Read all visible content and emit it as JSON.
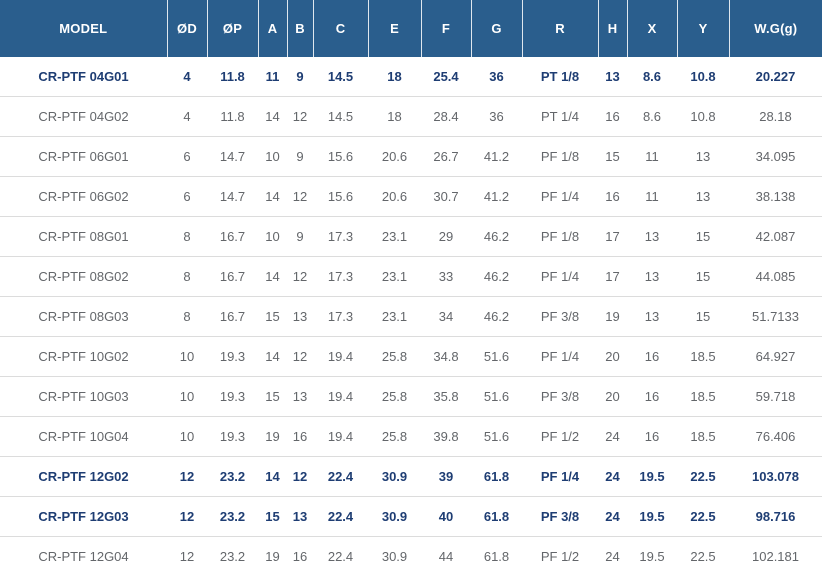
{
  "chart_data": {
    "type": "table",
    "title": "",
    "columns": [
      "MODEL",
      "ØD",
      "ØP",
      "A",
      "B",
      "C",
      "E",
      "F",
      "G",
      "R",
      "H",
      "X",
      "Y",
      "W.G(g)"
    ],
    "rows": [
      [
        "CR-PTF 04G01",
        "4",
        "11.8",
        "11",
        "9",
        "14.5",
        "18",
        "25.4",
        "36",
        "PT 1/8",
        "13",
        "8.6",
        "10.8",
        "20.227"
      ],
      [
        "CR-PTF 04G02",
        "4",
        "11.8",
        "14",
        "12",
        "14.5",
        "18",
        "28.4",
        "36",
        "PT 1/4",
        "16",
        "8.6",
        "10.8",
        "28.18"
      ],
      [
        "CR-PTF 06G01",
        "6",
        "14.7",
        "10",
        "9",
        "15.6",
        "20.6",
        "26.7",
        "41.2",
        "PF 1/8",
        "15",
        "11",
        "13",
        "34.095"
      ],
      [
        "CR-PTF 06G02",
        "6",
        "14.7",
        "14",
        "12",
        "15.6",
        "20.6",
        "30.7",
        "41.2",
        "PF 1/4",
        "16",
        "11",
        "13",
        "38.138"
      ],
      [
        "CR-PTF 08G01",
        "8",
        "16.7",
        "10",
        "9",
        "17.3",
        "23.1",
        "29",
        "46.2",
        "PF 1/8",
        "17",
        "13",
        "15",
        "42.087"
      ],
      [
        "CR-PTF 08G02",
        "8",
        "16.7",
        "14",
        "12",
        "17.3",
        "23.1",
        "33",
        "46.2",
        "PF 1/4",
        "17",
        "13",
        "15",
        "44.085"
      ],
      [
        "CR-PTF 08G03",
        "8",
        "16.7",
        "15",
        "13",
        "17.3",
        "23.1",
        "34",
        "46.2",
        "PF 3/8",
        "19",
        "13",
        "15",
        "51.7133"
      ],
      [
        "CR-PTF 10G02",
        "10",
        "19.3",
        "14",
        "12",
        "19.4",
        "25.8",
        "34.8",
        "51.6",
        "PF 1/4",
        "20",
        "16",
        "18.5",
        "64.927"
      ],
      [
        "CR-PTF 10G03",
        "10",
        "19.3",
        "15",
        "13",
        "19.4",
        "25.8",
        "35.8",
        "51.6",
        "PF 3/8",
        "20",
        "16",
        "18.5",
        "59.718"
      ],
      [
        "CR-PTF 10G04",
        "10",
        "19.3",
        "19",
        "16",
        "19.4",
        "25.8",
        "39.8",
        "51.6",
        "PF 1/2",
        "24",
        "16",
        "18.5",
        "76.406"
      ],
      [
        "CR-PTF 12G02",
        "12",
        "23.2",
        "14",
        "12",
        "22.4",
        "30.9",
        "39",
        "61.8",
        "PF 1/4",
        "24",
        "19.5",
        "22.5",
        "103.078"
      ],
      [
        "CR-PTF 12G03",
        "12",
        "23.2",
        "15",
        "13",
        "22.4",
        "30.9",
        "40",
        "61.8",
        "PF 3/8",
        "24",
        "19.5",
        "22.5",
        "98.716"
      ],
      [
        "CR-PTF 12G04",
        "12",
        "23.2",
        "19",
        "16",
        "22.4",
        "30.9",
        "44",
        "61.8",
        "PF 1/2",
        "24",
        "19.5",
        "22.5",
        "102.181"
      ]
    ],
    "highlighted_rows": [
      0,
      10,
      11
    ],
    "legend_position": "none",
    "grid": "horizontal-row-dividers"
  },
  "style": {
    "colors": {
      "header_bg": "#2a5e8d",
      "header_text": "#ffffff",
      "header_divider": "rgba(255,255,255,0.85)",
      "row_text": "#63666a",
      "highlight_text": "#1e3d73",
      "row_border": "#dcdcdc",
      "row_bg": "#ffffff"
    }
  }
}
